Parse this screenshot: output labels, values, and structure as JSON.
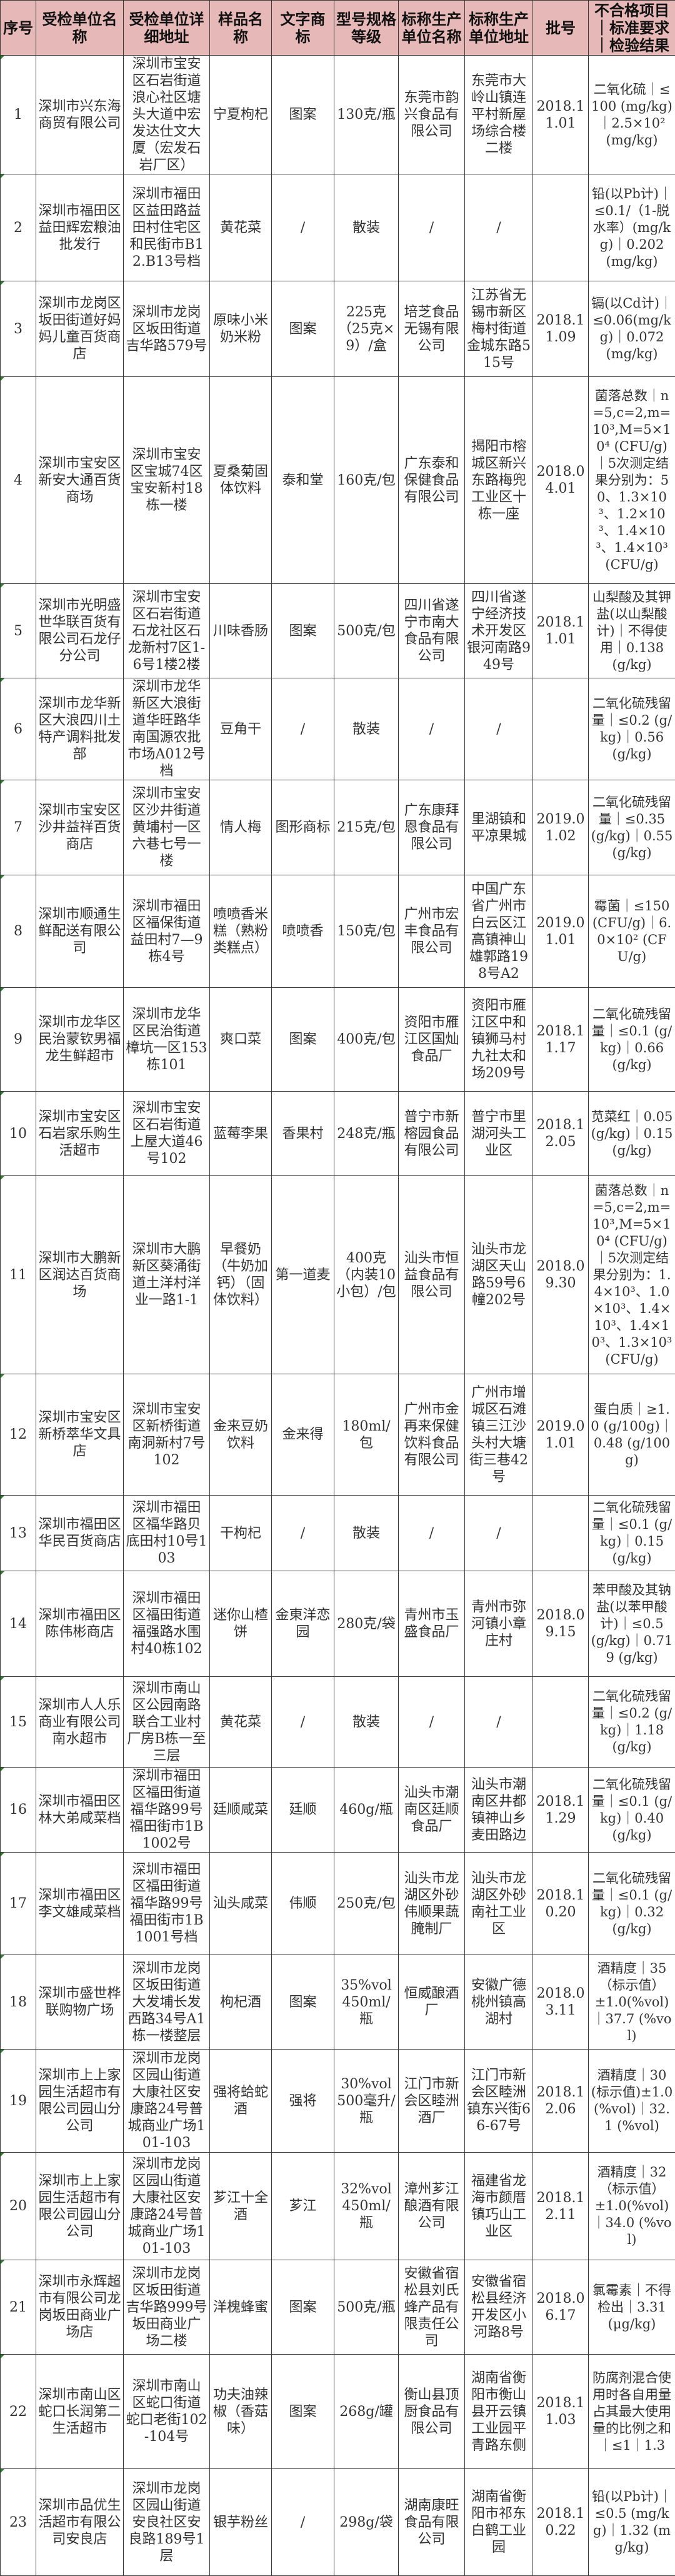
{
  "colors": {
    "header_bg": "#e6b8b7",
    "border": "#3a3a3a"
  },
  "headers": [
    "序号",
    "受检单位名称",
    "受检单位详细地址",
    "样品名称",
    "文字商标",
    "型号规格等级",
    "标称生产单位名称",
    "标称生产单位地址",
    "批号",
    "不合格项目｜标准要求｜检验结果"
  ],
  "rows": [
    [
      "1",
      "深圳市兴东海商贸有限公司",
      "深圳市宝安区石岩街道浪心社区塘头大道中宏发达仕文大厦（宏发石岩厂区）",
      "宁夏枸杞",
      "图案",
      "130克/瓶",
      "东莞市韵兴食品有限公司",
      "东莞市大岭山镇连平村新屋场综合楼二楼",
      "2018.11.01",
      "二氧化硫｜≤100 (mg/kg)｜2.5×10² (mg/kg)"
    ],
    [
      "2",
      "深圳市福田区益田辉宏粮油批发行",
      "深圳市福田区益田路益田村住宅区和民街市B12.B13号档",
      "黄花菜",
      "/",
      "散装",
      "/",
      "/",
      "",
      "铅(以Pb计)｜≤0.1/（1-脱水率）(mg/kg)｜0.202 (mg/kg)"
    ],
    [
      "3",
      "深圳市龙岗区坂田街道好妈妈儿童百货商店",
      "深圳市龙岗区坂田街道吉华路579号",
      "原味小米奶米粉",
      "图案",
      "225克（25克×9）/盒",
      "培芝食品无锡有限公司",
      "江苏省无锡市新区梅村街道金城东路515号",
      "2018.11.09",
      "镉(以Cd计)｜≤0.06(mg/kg)｜0.072 (mg/kg)"
    ],
    [
      "4",
      "深圳市宝安区新安大通百货商场",
      "深圳市宝安区宝城74区宝安新村18栋一楼",
      "夏桑菊固体饮料",
      "泰和堂",
      "160克/包",
      "广东泰和保健食品有限公司",
      "揭阳市榕城区新兴东路梅兜工业区十栋一座",
      "2018.04.01",
      "菌落总数｜n=5,c=2,m=10³,M=5×10⁴ (CFU/g)｜5次测定结果分别为：50、1.3×10³、1.2×10³、1.4×10³、1.4×10³ (CFU/g)"
    ],
    [
      "5",
      "深圳市光明盛世华联百货有限公司石龙仔分公司",
      "深圳市宝安区石岩街道石龙社区石龙新村7区1-6号1楼2楼",
      "川味香肠",
      "图案",
      "500克/包",
      "四川省遂宁市南大食品有限公司",
      "四川省遂宁经济技术开发区银河南路949号",
      "2018.11.01",
      "山梨酸及其钾盐(以山梨酸计)｜不得使用｜0.138 (g/kg)"
    ],
    [
      "6",
      "深圳市龙华新区大浪四川土特产调料批发部",
      "深圳市龙华新区大浪街道华旺路华南国源农批市场A012号档",
      "豆角干",
      "/",
      "散装",
      "/",
      "/",
      "",
      "二氧化硫残留量｜≤0.2 (g/kg)｜0.56 (g/kg)"
    ],
    [
      "7",
      "深圳市宝安区沙井益祥百货商店",
      "深圳市宝安区沙井街道黄埔村一区六巷七号一楼",
      "情人梅",
      "图形商标",
      "215克/包",
      "广东康拜恩食品有限公司",
      "里湖镇和平凉果城",
      "2019.01.02",
      "二氧化硫残留量｜≤0.35(g/kg)｜0.55 (g/kg)"
    ],
    [
      "8",
      "深圳市顺通生鲜配送有限公司",
      "深圳市福田区福保街道益田村7—9栋4号",
      "喷喷香米糕（熟粉类糕点）",
      "喷喷香",
      "150克/包",
      "广州市宏丰食品有限公司",
      "中国广东省广州市白云区江高镇神山雄郭路198号A2",
      "2019.01.01",
      "霉菌｜≤150 (CFU/g)｜6.0×10² (CFU/g)"
    ],
    [
      "9",
      "深圳市龙华区民治蒙钦男福龙生鲜超市",
      "深圳市龙华区民治街道樟坑一区153栋101",
      "爽口菜",
      "图案",
      "400克/包",
      "资阳市雁江区国灿食品厂",
      "资阳市雁江区中和镇狮马村九社太和场209号",
      "2018.11.17",
      "二氧化硫残留量｜≤0.1 (g/kg)｜0.66 (g/kg)"
    ],
    [
      "10",
      "深圳市宝安区石岩家乐购生活超市",
      "深圳市宝安区石岩街道上屋大道46号102",
      "蓝莓李果",
      "香果村",
      "248克/瓶",
      "普宁市新榕园食品有限公司",
      "普宁市里湖河头工业区",
      "2018.12.05",
      "苋菜红｜0.05(g/kg)｜0.15 (g/kg)"
    ],
    [
      "11",
      "深圳市大鹏新区润达百货商场",
      "深圳市大鹏新区葵涌街道土洋村洋业一路1-1",
      "早餐奶（牛奶加钙）（固体饮料）",
      "第一道麦",
      "400克（内装10小包）/包",
      "汕头市恒益食品有限公司",
      "汕头市龙湖区天山路59号6幢202号",
      "2018.09.30",
      "菌落总数｜n=5,c=2,m=10³,M=5×10⁴ (CFU/g)｜5次测定结果分别为：1.4×10³、1.0×10³、1.4×10³、1.4×10³、1.3×10³ (CFU/g)"
    ],
    [
      "12",
      "深圳市宝安区新桥萃华文具店",
      "深圳市宝安区新桥街道南洞新村7号102",
      "金来豆奶饮料",
      "金来得",
      "180ml/包",
      "广州市金再来保健饮料食品有限公司",
      "广州市增城区石滩镇三江沙头村大塘街三巷42号",
      "2019.01.01",
      "蛋白质｜≥1.0 (g/100g)｜0.48 (g/100g)"
    ],
    [
      "13",
      "深圳市福田区华民百货商店",
      "深圳市福田区福华路贝底田村10号103",
      "干枸杞",
      "/",
      "散装",
      "/",
      "/",
      "",
      "二氧化硫残留量｜≤0.1 (g/kg)｜0.15 (g/kg)"
    ],
    [
      "14",
      "深圳市福田区陈伟彬商店",
      "深圳市福田区福田街道福强路水围村40栋102",
      "迷你山楂饼",
      "金東洋恋园",
      "280克/袋",
      "青州市玉盛食品厂",
      "青州市弥河镇小章庄村",
      "2018.09.15",
      "苯甲酸及其钠盐(以苯甲酸计)｜≤0.5 (g/kg)｜0.719 (g/kg)"
    ],
    [
      "15",
      "深圳市人人乐商业有限公司南水超市",
      "深圳市南山区公园南路联合工业村厂房B栋一至三层",
      "黄花菜",
      "/",
      "散装",
      "/",
      "/",
      "",
      "二氧化硫残留量｜≤0.2 (g/kg)｜1.18 (g/kg)"
    ],
    [
      "16",
      "深圳市福田区林大弟咸菜档",
      "深圳市福田区福田街道福华路99号福田街市1B1002号",
      "廷顺咸菜",
      "廷顺",
      "460g/瓶",
      "汕头市潮南区廷顺食品厂",
      "汕头市潮南区井都镇神山乡麦田路边",
      "2018.11.29",
      "二氧化硫残留量｜≤0.1 (g/kg)｜0.40 (g/kg)"
    ],
    [
      "17",
      "深圳市福田区李文雄咸菜档",
      "深圳市福田区福田街道福华路99号福田街市1B1001号档",
      "汕头咸菜",
      "伟顺",
      "250克/包",
      "汕头市龙湖区外砂伟顺果蔬腌制厂",
      "汕头市龙湖区外砂南社工业区",
      "2018.10.20",
      "二氧化硫残留量｜≤0.1 (g/kg)｜0.32 (g/kg)"
    ],
    [
      "18",
      "深圳市盛世桦联购物广场",
      "深圳市龙岗区坂田街道大发埔长发西路34号A1栋一楼整层",
      "枸杞酒",
      "图案",
      "35%vol 450ml/瓶",
      "恒威酿酒厂",
      "安徽广德桃州镇高湖村",
      "2018.03.11",
      "酒精度｜35（标示值）±1.0(%vol)｜37.7 (%vol)"
    ],
    [
      "19",
      "深圳市上上家园生活超市有限公司园山分公司",
      "深圳市龙岗区园山街道大康社区安康路24号普城商业广场101-103",
      "强将蛤蛇酒",
      "强将",
      "30%vol 500毫升/瓶",
      "江门市新会区睦洲酒厂",
      "江门市新会区睦洲镇东兴街66-67号",
      "2018.12.06",
      "酒精度｜30(标示值)±1.0(%vol)｜32.1 (%vol)"
    ],
    [
      "20",
      "深圳市上上家园生活超市有限公司园山分公司",
      "深圳市龙岗区园山街道大康社区安康路24号普城商业广场101-103",
      "芗江十全酒",
      "芗江",
      "32%vol 450ml/瓶",
      "漳州芗江酿酒有限公司",
      "福建省龙海市颜厝镇巧山工业区",
      "2018.12.11",
      "酒精度｜32（标示值）±1.0(%vol)｜34.0 (%vol)"
    ],
    [
      "21",
      "深圳市永辉超市有限公司龙岗坂田商业广场店",
      "深圳市龙岗区坂田街道吉华路999号坂田商业广场二楼",
      "洋槐蜂蜜",
      "图案",
      "500克/瓶",
      "安徽省宿松县刘氏蜂产品有限责任公司",
      "安徽省宿松县经济开发区小河路8号",
      "2018.06.17",
      "氯霉素｜不得检出｜3.31 (μg/kg)"
    ],
    [
      "22",
      "深圳市南山区蛇口长润第二生活超市",
      "深圳市南山区蛇口街道蛇口老街102-104号",
      "功夫油辣椒（香菇味）",
      "图案",
      "268g/罐",
      "衡山县顶厨食品有限公司",
      "湖南省衡阳市衡山县开云镇工业园平青路东侧",
      "2018.11.03",
      "防腐剂混合使用时各自用量占其最大使用量的比例之和｜≤1｜1.3"
    ],
    [
      "23",
      "深圳市品优生活超市有限公司安良店",
      "深圳市龙岗区园山街道安良社区安良路189号1层",
      "银芋粉丝",
      "/",
      "298g/袋",
      "湖南康旺食品有限公司",
      "湖南省衡阳市祁东白鹤工业园",
      "2018.10.22",
      "铅(以Pb计)｜≤0.5 (mg/kg)｜1.32 (mg/kg)"
    ]
  ]
}
